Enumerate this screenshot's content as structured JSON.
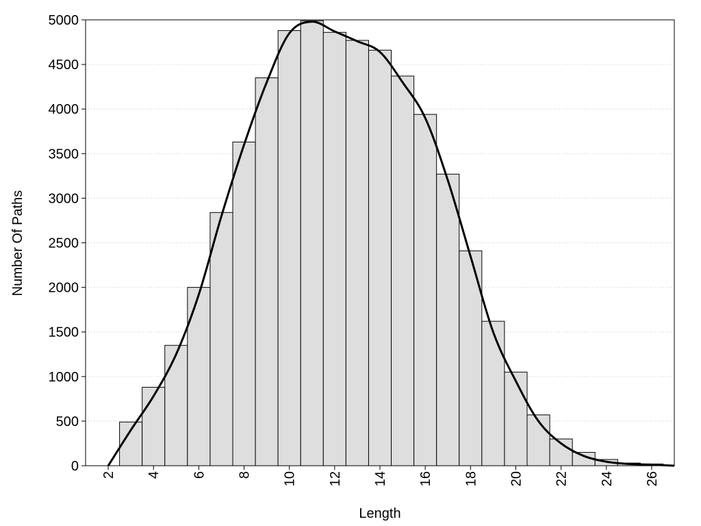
{
  "chart_data": {
    "type": "histogram",
    "x_label": "Length",
    "y_label": "Number Of Paths",
    "bins": [
      2.5,
      3.5,
      4.5,
      5.5,
      6.5,
      7.5,
      8.5,
      9.5,
      10.5,
      11.5,
      12.5,
      13.5,
      14.5,
      15.5,
      16.5,
      17.5,
      18.5,
      19.5,
      20.5,
      21.5,
      22.5,
      23.5,
      24.5,
      25.5,
      26.5
    ],
    "values": [
      490,
      880,
      1350,
      2000,
      2840,
      3630,
      4350,
      4880,
      4990,
      4860,
      4770,
      4660,
      4370,
      3940,
      3270,
      2410,
      1620,
      1050,
      570,
      300,
      150,
      70,
      30,
      20
    ],
    "color": "#dedede",
    "line": {
      "x": [
        2,
        3,
        4,
        5,
        6,
        7,
        8,
        9,
        10,
        11,
        12,
        13,
        14,
        15,
        16,
        17,
        18,
        19,
        20,
        21,
        22,
        23,
        24,
        25,
        26,
        27
      ],
      "values": [
        0,
        400,
        780,
        1250,
        1920,
        2800,
        3600,
        4300,
        4850,
        4980,
        4870,
        4760,
        4640,
        4300,
        3900,
        3200,
        2350,
        1500,
        950,
        500,
        250,
        110,
        45,
        20,
        12,
        0
      ],
      "color": "#000000"
    },
    "xlim": [
      1,
      27
    ],
    "xticks": [
      2,
      4,
      6,
      8,
      10,
      12,
      14,
      16,
      18,
      20,
      22,
      24,
      26
    ],
    "ylim": [
      0,
      5000
    ],
    "yticks": [
      0,
      500,
      1000,
      1500,
      2000,
      2500,
      3000,
      3500,
      4000,
      4500,
      5000
    ],
    "grid": true
  }
}
